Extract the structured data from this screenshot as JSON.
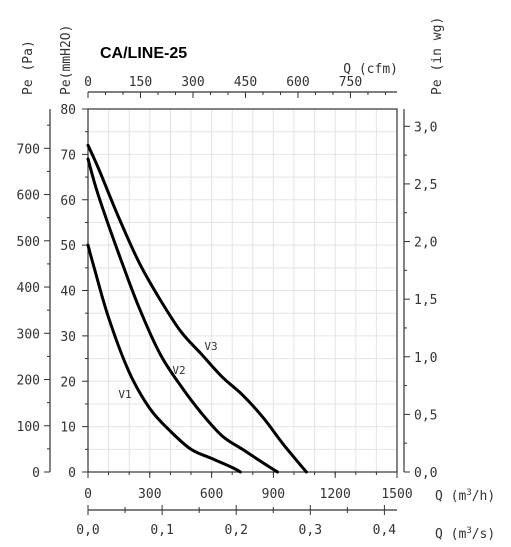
{
  "chart_data": {
    "type": "line",
    "title": "CA/LINE-25",
    "axes": {
      "x_bottom_m3h": {
        "label": "Q (m3/h)",
        "range": [
          0,
          1500
        ],
        "ticks": [
          "0",
          "300",
          "600",
          "900",
          "1200",
          "1500"
        ]
      },
      "x_bottom_m3s": {
        "label": "Q (m3/s)",
        "range": [
          0,
          0.417
        ],
        "ticks": [
          "0,0",
          "0,1",
          "0,2",
          "0,3",
          "0,4"
        ]
      },
      "x_top_cfm": {
        "label": "Q (cfm)",
        "range": [
          0,
          883
        ],
        "ticks": [
          "0",
          "150",
          "300",
          "450",
          "600",
          "750"
        ]
      },
      "y_left_pa": {
        "label": "Pe (Pa)",
        "range": [
          0,
          785
        ],
        "ticks": [
          "0",
          "100",
          "200",
          "300",
          "400",
          "500",
          "600",
          "700"
        ]
      },
      "y_left_mmh2o": {
        "label": "Pe(mmH2O)",
        "range": [
          0,
          80
        ],
        "ticks": [
          "0",
          "10",
          "20",
          "30",
          "40",
          "50",
          "60",
          "70",
          "80"
        ]
      },
      "y_right_inwg": {
        "label": "Pe (in wg)",
        "range": [
          0,
          3.15
        ],
        "ticks": [
          "0,0",
          "0,5",
          "1,0",
          "1,5",
          "2,0",
          "2,5",
          "3,0"
        ]
      }
    },
    "grid": true,
    "x_unit": "m3/h",
    "y_unit": "mmH2O",
    "series": [
      {
        "name": "V1",
        "points": [
          [
            0,
            50
          ],
          [
            30,
            45
          ],
          [
            100,
            34
          ],
          [
            200,
            22
          ],
          [
            300,
            14
          ],
          [
            400,
            9
          ],
          [
            500,
            5
          ],
          [
            600,
            3
          ],
          [
            700,
            1
          ],
          [
            740,
            0
          ]
        ]
      },
      {
        "name": "V2",
        "points": [
          [
            0,
            69
          ],
          [
            50,
            61
          ],
          [
            150,
            48
          ],
          [
            250,
            36
          ],
          [
            350,
            26
          ],
          [
            450,
            19
          ],
          [
            550,
            13
          ],
          [
            650,
            8
          ],
          [
            750,
            5
          ],
          [
            850,
            2
          ],
          [
            920,
            0
          ]
        ]
      },
      {
        "name": "V3",
        "points": [
          [
            0,
            72
          ],
          [
            50,
            67
          ],
          [
            150,
            56
          ],
          [
            250,
            46
          ],
          [
            350,
            38
          ],
          [
            450,
            31
          ],
          [
            550,
            26
          ],
          [
            650,
            21
          ],
          [
            750,
            17
          ],
          [
            850,
            12
          ],
          [
            950,
            6
          ],
          [
            1060,
            0
          ]
        ]
      }
    ]
  }
}
